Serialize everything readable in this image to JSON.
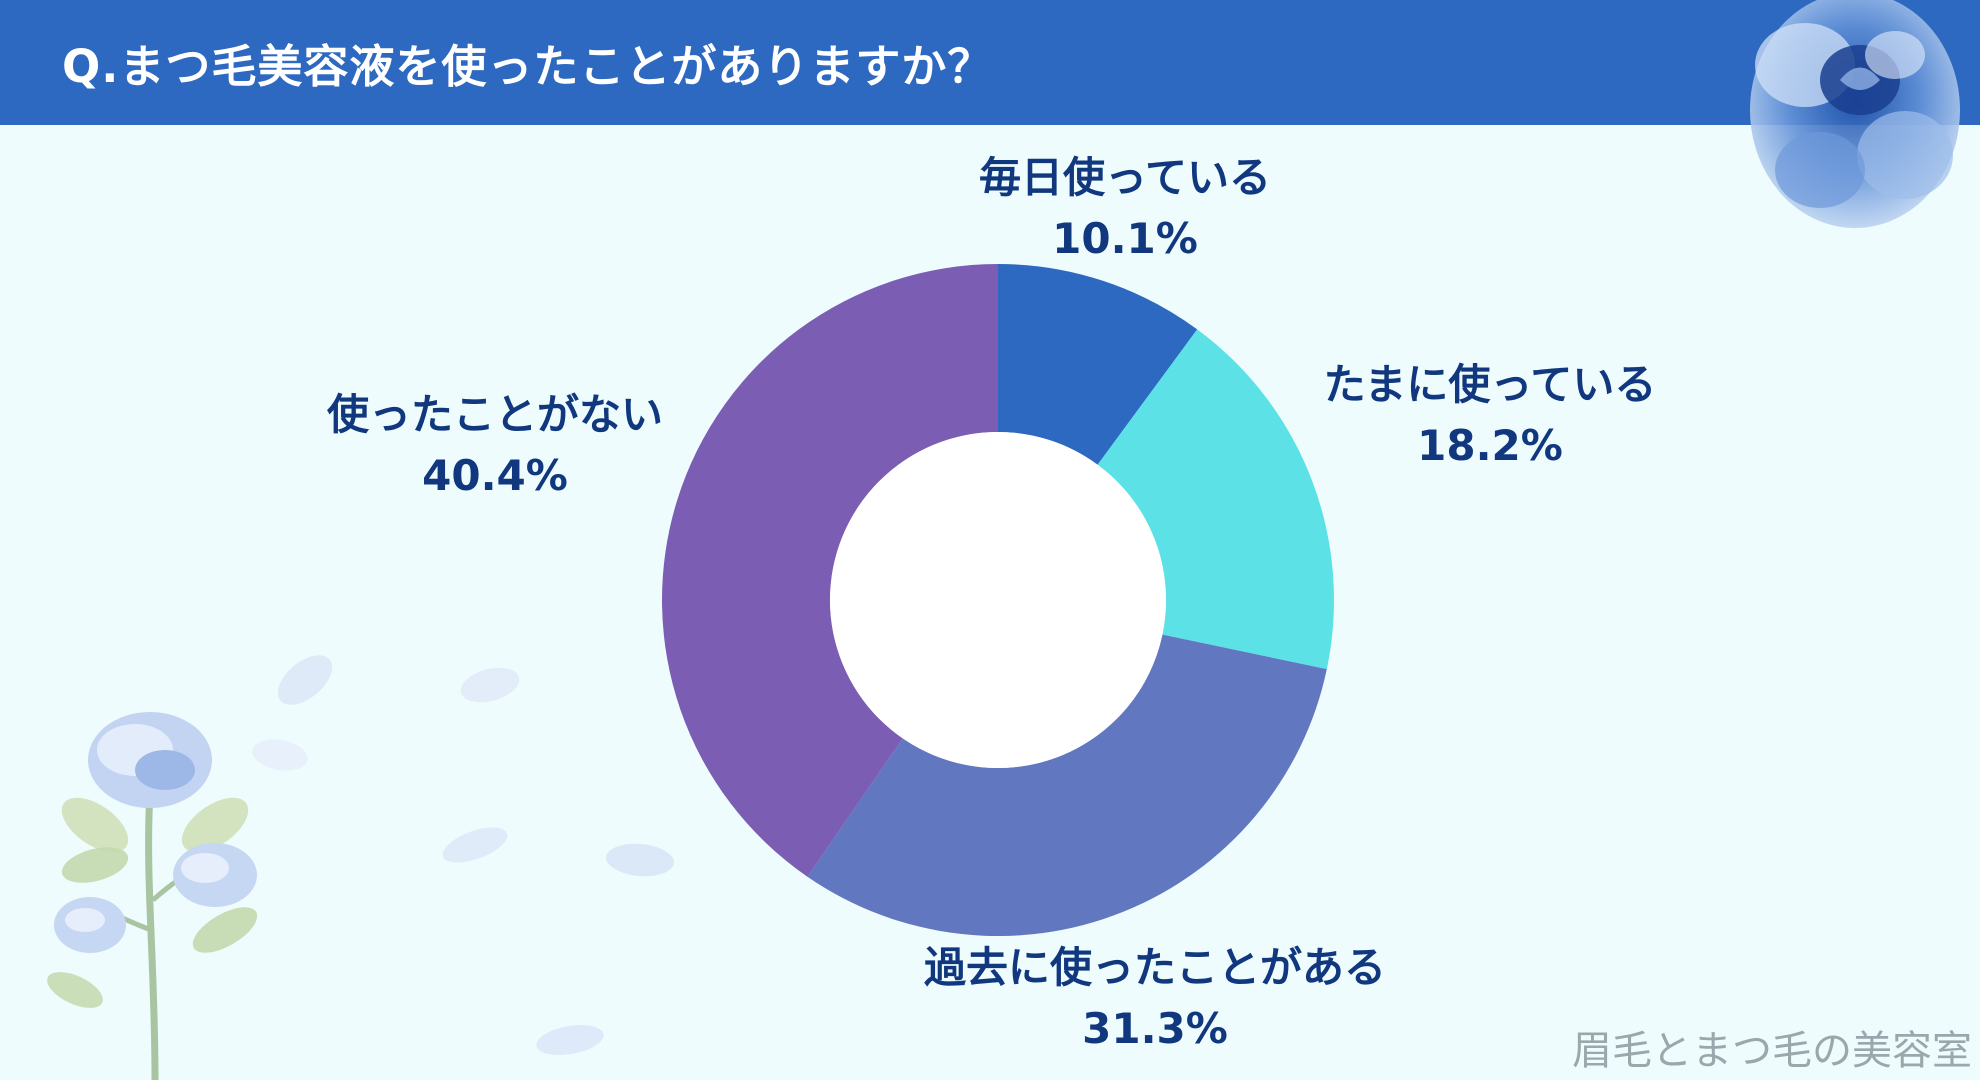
{
  "header": {
    "title": "Q.まつ毛美容液を使ったことがありますか？",
    "background": "#2d69c0"
  },
  "chart_data": {
    "type": "pie",
    "variant": "donut",
    "title": "Q.まつ毛美容液を使ったことがありますか？",
    "slices": [
      {
        "label": "毎日使っている",
        "value": 10.1,
        "value_label": "10.1%",
        "color": "#2d69c0"
      },
      {
        "label": "たまに使っている",
        "value": 18.2,
        "value_label": "18.2%",
        "color": "#5ce2e6"
      },
      {
        "label": "過去に使ったことがある",
        "value": 31.3,
        "value_label": "31.3%",
        "color": "#6177c0"
      },
      {
        "label": "使ったことがない",
        "value": 40.4,
        "value_label": "40.4%",
        "color": "#7b5db3"
      }
    ],
    "start_angle": "12 o'clock",
    "direction": "clockwise",
    "legend": "none"
  },
  "decorations": {
    "top_right": "blue-rose-icon",
    "bottom_left": "blue-rose-stem-icon",
    "petals": "petal-icon"
  },
  "watermark": "眉毛とまつ毛の美容室"
}
